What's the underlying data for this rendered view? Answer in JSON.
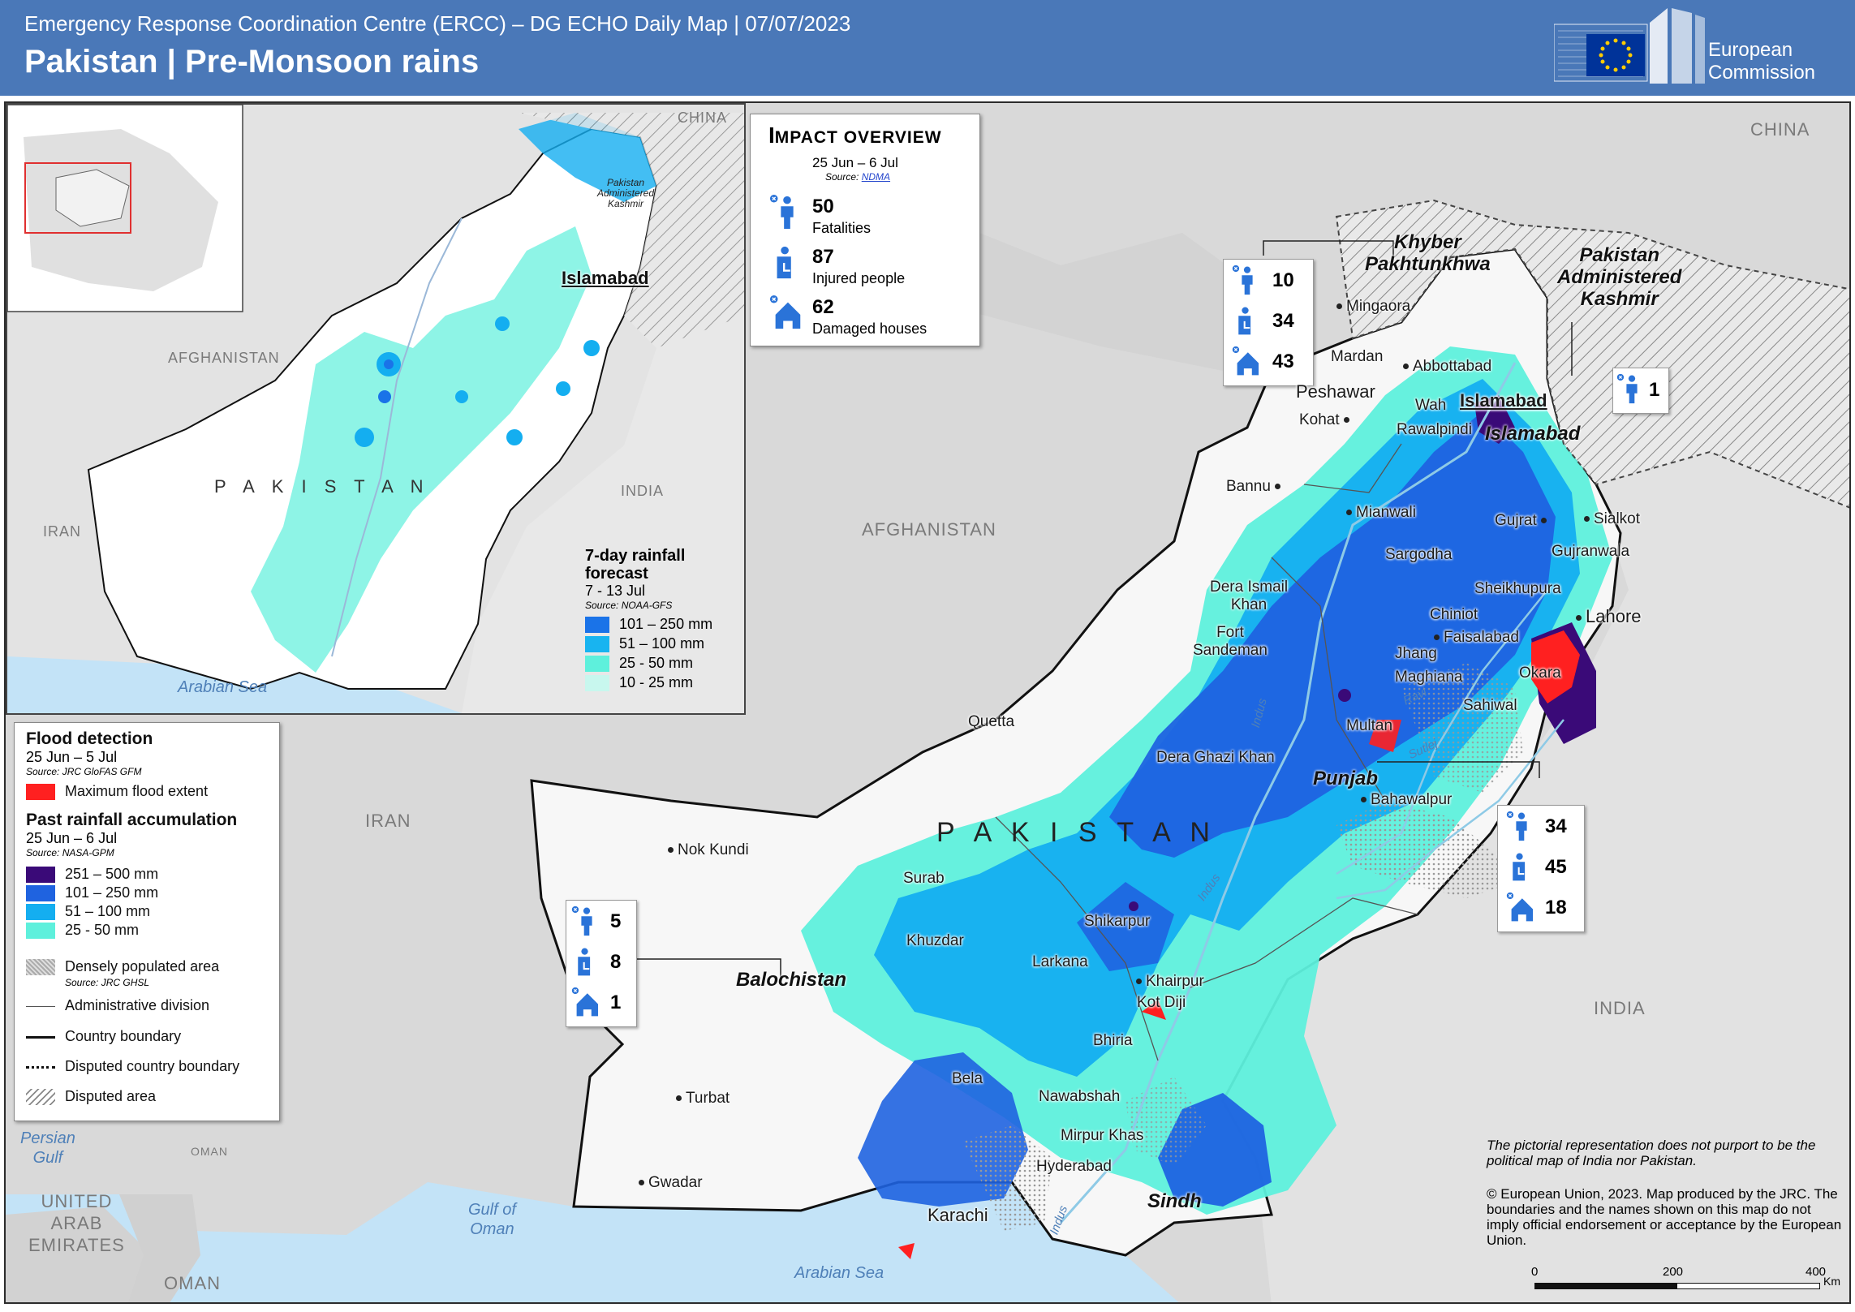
{
  "header": {
    "subtitle": "Emergency Response Coordination Centre (ERCC) – DG ECHO Daily Map | 07/07/2023",
    "title": "Pakistan | Pre-Monsoon rains",
    "logo_line1": "European",
    "logo_line2": "Commission"
  },
  "impact_overview": {
    "title_first": "I",
    "title_rest": "MPACT OVERVIEW",
    "period": "25 Jun – 6 Jul",
    "source_prefix": "Source: ",
    "source_link": "NDMA",
    "fatalities_value": "50",
    "fatalities_label": "Fatalities",
    "injured_value": "87",
    "injured_label": "Injured people",
    "damaged_value": "62",
    "damaged_label": "Damaged houses"
  },
  "regional_impacts": {
    "khyber": {
      "fatalities": "10",
      "injured": "34",
      "damaged": "43"
    },
    "kashmir": {
      "fatalities": "1"
    },
    "punjab": {
      "fatalities": "34",
      "injured": "45",
      "damaged": "18"
    },
    "balochistan": {
      "fatalities": "5",
      "injured": "8",
      "damaged": "1"
    }
  },
  "forecast_inset": {
    "title_line1": "7-day rainfall",
    "title_line2": "forecast",
    "period": "7 - 13 Jul",
    "source": "Source: NOAA-GFS",
    "classes": [
      {
        "label": "101 – 250 mm",
        "color": "#1a73e8"
      },
      {
        "label": "51 – 100 mm",
        "color": "#18b4f0"
      },
      {
        "label": "25 - 50 mm",
        "color": "#5ef0dc"
      },
      {
        "label": "10 - 25 mm",
        "color": "#c8f7ee"
      }
    ],
    "labels": {
      "china": "CHINA",
      "afghanistan": "AFGHANISTAN",
      "pakistan": "P A K I S T A N",
      "iran": "IRAN",
      "india": "INDIA",
      "arabian_sea": "Arabian Sea",
      "islamabad": "Islamabad",
      "kashmir": "Pakistan\nAdministered\nKashmir"
    }
  },
  "legend": {
    "flood_title": "Flood detection",
    "flood_period": "25 Jun – 5 Jul",
    "flood_source": "Source: JRC GloFAS GFM",
    "flood_item": "Maximum flood extent",
    "flood_color": "#ff2020",
    "rain_title": "Past rainfall accumulation",
    "rain_period": "25 Jun – 6 Jul",
    "rain_source": "Source: NASA-GPM",
    "rain_classes": [
      {
        "label": "251 – 500 mm",
        "color": "#3a0a78"
      },
      {
        "label": "101 – 250 mm",
        "color": "#1f63e0"
      },
      {
        "label": "51 – 100 mm",
        "color": "#14aef0"
      },
      {
        "label": "25 - 50 mm",
        "color": "#5ef0dc"
      }
    ],
    "dense_pop": "Densely populated area",
    "dense_source": "Source: JRC GHSL",
    "admin": "Administrative division",
    "country_boundary": "Country boundary",
    "disputed_boundary": "Disputed country boundary",
    "disputed_area": "Disputed area"
  },
  "map_labels": {
    "countries": {
      "china": "CHINA",
      "afghanistan": "AFGHANISTAN",
      "iran": "IRAN",
      "india": "INDIA",
      "pakistan": "P A K I S T A N",
      "uae": "UNITED\nARAB\nEMIRATES",
      "oman": "OMAN",
      "oman_small": "OMAN"
    },
    "water": {
      "persian_gulf": "Persian\nGulf",
      "gulf_of_oman": "Gulf of\nOman",
      "arabian_sea": "Arabian Sea"
    },
    "regions": {
      "khyber": "Khyber\nPakhtunkhwa",
      "kashmir": "Pakistan\nAdministered\nKashmir",
      "islamabad_region": "Islamabad",
      "punjab": "Punjab",
      "balochistan": "Balochistan",
      "sindh": "Sindh"
    },
    "rivers": {
      "indus1": "Indus",
      "indus2": "Indus",
      "indus3": "Indus",
      "ravi": "Ravi",
      "sutlej": "Sutlej"
    },
    "cities": {
      "mingaora": "Mingaora",
      "mardan": "Mardan",
      "abbottabad": "Abbottabad",
      "peshawar": "Peshawar",
      "islamabad": "Islamabad",
      "wah": "Wah",
      "kohat": "Kohat",
      "rawalpindi": "Rawalpindi",
      "bannu": "Bannu",
      "mianwali": "Mianwali",
      "gujrat": "Gujrat",
      "sialkot": "Sialkot",
      "sargodha": "Sargodha",
      "gujranwala": "Gujranwala",
      "sheikhupura": "Sheikhupura",
      "lahore": "Lahore",
      "dera_ismail_khan": "Dera Ismail\nKhan",
      "chiniot": "Chiniot",
      "fort_sandeman": "Fort\nSandeman",
      "faisalabad": "Faisalabad",
      "jhang": "Jhang",
      "maghiana": "Maghiana",
      "okara": "Okara",
      "sahiwal": "Sahiwal",
      "quetta": "Quetta",
      "multan": "Multan",
      "dera_ghazi_khan": "Dera Ghazi Khan",
      "bahawalpur": "Bahawalpur",
      "nok_kundi": "Nok Kundi",
      "surab": "Surab",
      "shikarpur": "Shikarpur",
      "khuzdar": "Khuzdar",
      "larkana": "Larkana",
      "khairpur": "Khairpur",
      "kot_diji": "Kot Diji",
      "bhiria": "Bhiria",
      "bela": "Bela",
      "turbat": "Turbat",
      "nawabshah": "Nawabshah",
      "mirpur_khas": "Mirpur Khas",
      "hyderabad": "Hyderabad",
      "gwadar": "Gwadar",
      "karachi": "Karachi"
    }
  },
  "disclaimer": "The pictorial representation does not purport to be the political map of India nor Pakistan.",
  "copyright": "© European Union, 2023. Map produced by the JRC. The boundaries and the names shown on this map do not imply official endorsement or acceptance by the European Union.",
  "scale_bar": {
    "tick0": "0",
    "tick1": "200",
    "tick2": "400",
    "unit": "Km"
  }
}
